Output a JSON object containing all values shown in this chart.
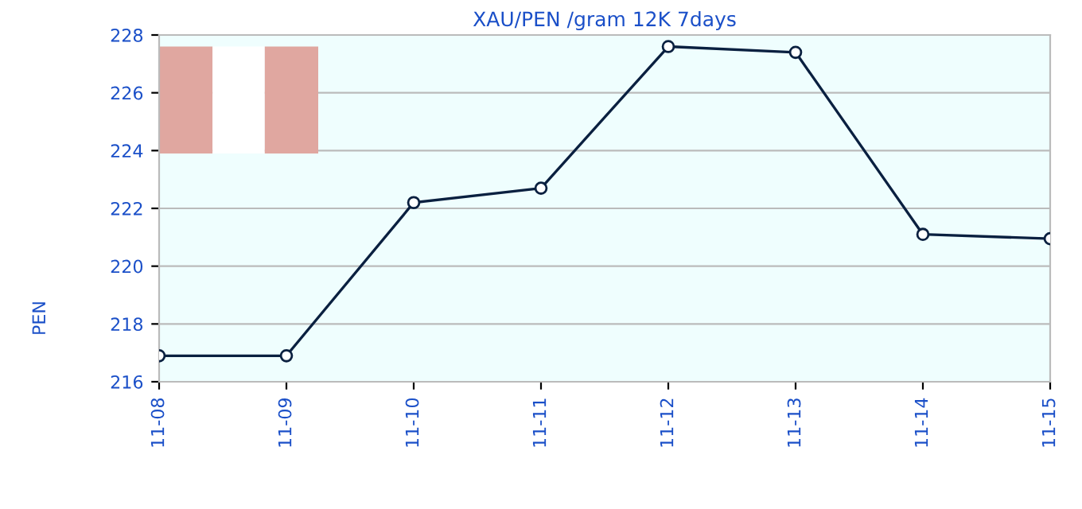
{
  "chart_data": {
    "type": "line",
    "title": "XAU/PEN /gram 12K 7days",
    "ylabel": "PEN",
    "categories": [
      "11-08",
      "11-09",
      "11-10",
      "11-11",
      "11-12",
      "11-13",
      "11-14",
      "11-15"
    ],
    "values": [
      216.9,
      216.9,
      222.2,
      222.7,
      227.6,
      227.4,
      221.1,
      220.95
    ],
    "color": "#0a2040",
    "ylim": [
      216,
      228
    ],
    "yticks": [
      216,
      218,
      220,
      222,
      224,
      226,
      228
    ],
    "grid": "y",
    "marker": "circle",
    "line_style": "solid"
  }
}
